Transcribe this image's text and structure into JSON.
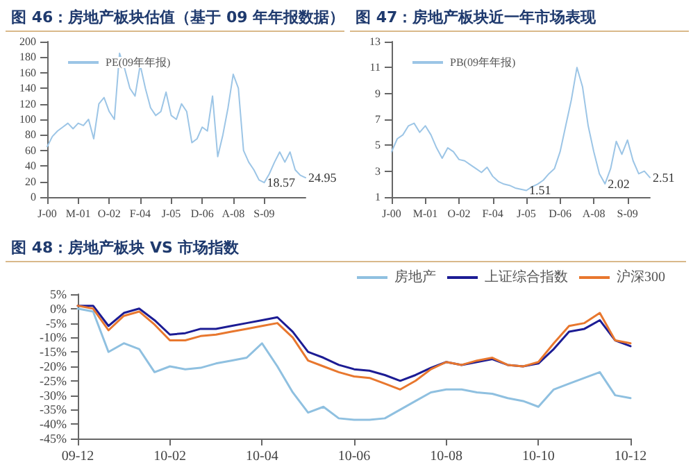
{
  "chart_data": [
    {
      "type": "line",
      "title": "图 46：房地产板块估值（基于 09 年年报数据）",
      "categories": [
        "J-00",
        null,
        null,
        null,
        null,
        null,
        "M-01",
        null,
        null,
        null,
        null,
        null,
        "O-02",
        null,
        null,
        null,
        null,
        null,
        "F-04",
        null,
        null,
        null,
        null,
        null,
        "J-05",
        null,
        null,
        null,
        null,
        null,
        "D-06",
        null,
        null,
        null,
        null,
        null,
        "A-08",
        null,
        null,
        null,
        null,
        null,
        "S-09",
        null,
        null,
        null,
        null,
        null,
        null,
        null,
        null
      ],
      "series": [
        {
          "name": "PE(09年年报)",
          "color": "#9cc5e6",
          "values": [
            65,
            78,
            85,
            90,
            95,
            88,
            95,
            92,
            100,
            75,
            120,
            128,
            110,
            100,
            185,
            165,
            140,
            130,
            170,
            140,
            115,
            105,
            110,
            135,
            105,
            100,
            120,
            110,
            70,
            75,
            90,
            85,
            130,
            52,
            80,
            115,
            158,
            140,
            60,
            45,
            35,
            22,
            18.57,
            30,
            45,
            58,
            45,
            58,
            35,
            28,
            24.95
          ],
          "value_labels": [
            null,
            null,
            null,
            null,
            null,
            null,
            null,
            null,
            null,
            null,
            null,
            null,
            null,
            null,
            null,
            null,
            null,
            null,
            null,
            null,
            null,
            null,
            null,
            null,
            null,
            null,
            null,
            null,
            null,
            null,
            null,
            null,
            null,
            null,
            null,
            null,
            null,
            null,
            null,
            null,
            null,
            null,
            "18.57",
            null,
            null,
            null,
            null,
            null,
            null,
            null,
            "24.95"
          ]
        }
      ],
      "ylim": [
        0,
        200
      ],
      "yticks": [
        0,
        20,
        40,
        60,
        80,
        100,
        120,
        140,
        160,
        180,
        200
      ],
      "legend": "top left",
      "grid": false,
      "line_style": "solid"
    },
    {
      "type": "line",
      "title": "图 47：房地产板块近一年市场表现",
      "categories": [
        "J-00",
        null,
        null,
        null,
        null,
        null,
        "M-01",
        null,
        null,
        null,
        null,
        null,
        "O-02",
        null,
        null,
        null,
        null,
        null,
        "F-04",
        null,
        null,
        null,
        null,
        null,
        "J-05",
        null,
        null,
        null,
        null,
        null,
        "D-06",
        null,
        null,
        null,
        null,
        null,
        "A-08",
        null,
        null,
        null,
        null,
        null,
        "S-09",
        null,
        null,
        null,
        null
      ],
      "series": [
        {
          "name": "PB(09年年报)",
          "color": "#9cc5e6",
          "values": [
            4.5,
            5.5,
            5.8,
            6.5,
            6.7,
            6.0,
            6.5,
            5.8,
            4.8,
            4.0,
            4.8,
            4.5,
            3.9,
            3.8,
            3.5,
            3.2,
            2.9,
            3.3,
            2.6,
            2.2,
            2.0,
            1.9,
            1.7,
            1.6,
            1.51,
            1.8,
            2.0,
            2.3,
            2.8,
            3.2,
            4.5,
            6.5,
            8.5,
            11,
            9.5,
            6.5,
            4.5,
            2.8,
            2.02,
            3.2,
            5.3,
            4.3,
            5.4,
            3.8,
            2.8,
            3.0,
            2.51
          ],
          "value_labels": [
            null,
            null,
            null,
            null,
            null,
            null,
            null,
            null,
            null,
            null,
            null,
            null,
            null,
            null,
            null,
            null,
            null,
            null,
            null,
            null,
            null,
            null,
            null,
            null,
            "1.51",
            null,
            null,
            null,
            null,
            null,
            null,
            null,
            null,
            null,
            null,
            null,
            null,
            null,
            "2.02",
            null,
            null,
            null,
            null,
            null,
            null,
            null,
            "2.51"
          ]
        }
      ],
      "ylim": [
        1,
        13
      ],
      "yticks": [
        1,
        3,
        5,
        7,
        9,
        11,
        13
      ],
      "legend": "top left",
      "grid": false,
      "line_style": "solid"
    },
    {
      "type": "line",
      "title": "图 48：房地产板块 VS 市场指数",
      "categories": [
        "09-12",
        null,
        null,
        null,
        null,
        null,
        "10-02",
        null,
        null,
        null,
        null,
        null,
        "10-04",
        null,
        null,
        null,
        null,
        null,
        "10-06",
        null,
        null,
        null,
        null,
        null,
        "10-08",
        null,
        null,
        null,
        null,
        null,
        "10-10",
        null,
        null,
        null,
        null,
        null,
        "10-12"
      ],
      "series": [
        {
          "name": "房地产",
          "color": "#8fc0e0",
          "values": [
            0,
            -1,
            -15,
            -12,
            -14,
            -22,
            -20,
            -21,
            -20.5,
            -19,
            -18,
            -17,
            -12,
            -20,
            -29,
            -36,
            -34,
            -38,
            -38.5,
            -38.5,
            -38,
            -35,
            -32,
            -29,
            -28,
            -28,
            -29,
            -29.5,
            -31,
            -32,
            -34,
            -28,
            -26,
            -24,
            -22,
            -30,
            -31
          ]
        },
        {
          "name": "上证综合指数",
          "color": "#1c1c94",
          "values": [
            1,
            1,
            -6,
            -1.5,
            0,
            -4,
            -9,
            -8.5,
            -7,
            -7,
            -6,
            -5,
            -4,
            -3,
            -8,
            -15,
            -17,
            -19.5,
            -21,
            -21.5,
            -23,
            -25,
            -23,
            -20.5,
            -18.5,
            -19.5,
            -18.5,
            -17.5,
            -19.5,
            -20,
            -19,
            -14,
            -8,
            -7,
            -4,
            -11,
            -13
          ]
        },
        {
          "name": "沪深300",
          "color": "#e8772e",
          "values": [
            1,
            0,
            -7.5,
            -2.5,
            -1,
            -5.5,
            -11,
            -11,
            -9.5,
            -9,
            -8,
            -7,
            -6,
            -5,
            -10,
            -18,
            -20,
            -22,
            -23.5,
            -24,
            -26,
            -28,
            -25,
            -21,
            -18.5,
            -19.5,
            -18,
            -17,
            -19.5,
            -20,
            -18.5,
            -12,
            -6,
            -5,
            -1.5,
            -11,
            -12
          ]
        }
      ],
      "ylim": [
        -45,
        5
      ],
      "yticks": [
        {
          "value": -45,
          "label": "-45%"
        },
        {
          "value": -40,
          "label": "-40%"
        },
        {
          "value": -35,
          "label": "-35%"
        },
        {
          "value": -30,
          "label": "-30%"
        },
        {
          "value": -25,
          "label": "-25%"
        },
        {
          "value": -20,
          "label": "-20%"
        },
        {
          "value": -15,
          "label": "-15%"
        },
        {
          "value": -10,
          "label": "-10%"
        },
        {
          "value": -5,
          "label": "-5%"
        },
        {
          "value": 0,
          "label": "0%"
        },
        {
          "value": 5,
          "label": "5%"
        }
      ],
      "legend": "top right",
      "grid": false,
      "line_style": "solid"
    }
  ]
}
